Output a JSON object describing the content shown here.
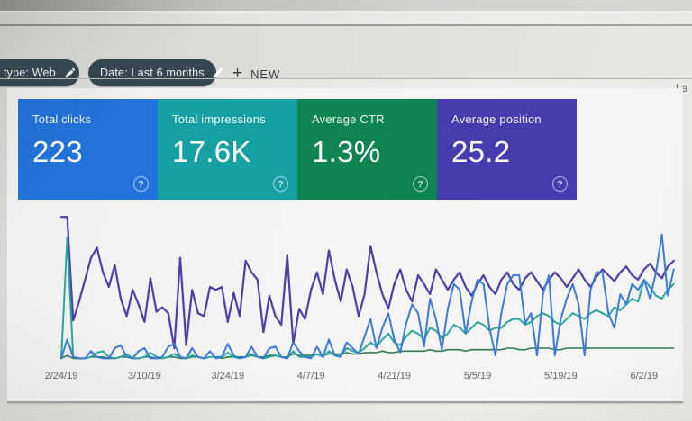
{
  "toolbar": {
    "search_type_chip": "type: Web",
    "date_chip": "Date: Last 6 months",
    "plus_glyph": "+",
    "new_button": "NEW",
    "last_updated_partial": "La"
  },
  "ui": {
    "help_glyph": "?"
  },
  "cards": [
    {
      "label": "Total clicks",
      "value": "223",
      "color": "#2272d9"
    },
    {
      "label": "Total impressions",
      "value": "17.6K",
      "color": "#17a0a1"
    },
    {
      "label": "Average CTR",
      "value": "1.3%",
      "color": "#0f8452"
    },
    {
      "label": "Average position",
      "value": "25.2",
      "color": "#463cae"
    }
  ],
  "chart_data": {
    "type": "line",
    "title": "",
    "xlabel": "",
    "ylabel": "",
    "grid": false,
    "y_axis_visible": false,
    "y_unit": "relative height 0-100 (no y-axis shown in chart)",
    "x_unit": "days (daily points, 2/24/19 onward)",
    "x_tick_labels": [
      "2/24/19",
      "3/10/19",
      "3/24/19",
      "4/7/19",
      "4/21/19",
      "5/5/19",
      "5/19/19",
      "6/2/19"
    ],
    "x_tick_days": [
      0,
      14,
      28,
      42,
      56,
      70,
      84,
      98
    ],
    "series": [
      {
        "key": "position",
        "name": "Average position",
        "color": "#4c3fa6",
        "width": 2.2,
        "values": [
          98,
          98,
          27,
          40,
          55,
          70,
          77,
          60,
          50,
          65,
          42,
          30,
          48,
          38,
          26,
          56,
          33,
          36,
          32,
          8,
          70,
          10,
          48,
          32,
          30,
          50,
          48,
          50,
          26,
          46,
          30,
          68,
          60,
          55,
          19,
          44,
          30,
          24,
          72,
          11,
          35,
          28,
          48,
          60,
          45,
          75,
          55,
          40,
          62,
          50,
          30,
          45,
          78,
          60,
          45,
          35,
          52,
          62,
          48,
          40,
          58,
          52,
          45,
          62,
          55,
          48,
          55,
          60,
          50,
          44,
          52,
          58,
          50,
          45,
          55,
          60,
          52,
          48,
          56,
          60,
          54,
          48,
          55,
          60,
          56,
          50,
          56,
          62,
          55,
          50,
          57,
          62,
          58,
          54,
          60,
          64,
          58,
          55,
          62,
          66,
          60,
          56,
          64,
          68
        ]
      },
      {
        "key": "ctr",
        "name": "Average CTR",
        "color": "#2f7d52",
        "width": 1.6,
        "values": [
          1,
          3,
          1,
          1,
          1,
          2,
          2,
          2,
          1,
          1,
          2,
          2,
          1,
          1,
          2,
          2,
          1,
          1,
          2,
          2,
          1,
          1,
          2,
          2,
          1,
          2,
          2,
          1,
          2,
          2,
          2,
          2,
          3,
          2,
          2,
          3,
          3,
          2,
          2,
          4,
          3,
          3,
          3,
          4,
          3,
          4,
          4,
          4,
          5,
          4,
          4,
          5,
          5,
          5,
          6,
          5,
          5,
          6,
          6,
          6,
          6,
          6,
          7,
          6,
          6,
          7,
          7,
          7,
          6,
          7,
          7,
          7,
          7,
          7,
          7,
          8,
          8,
          7,
          7,
          8,
          8,
          8,
          8,
          7,
          7,
          8,
          8,
          8,
          8,
          8,
          8,
          8,
          8,
          8,
          8,
          8,
          8,
          8,
          8,
          8,
          8,
          8,
          8,
          8
        ]
      },
      {
        "key": "impressions",
        "name": "Total impressions",
        "color": "#2aa59e",
        "width": 2,
        "values": [
          1,
          84,
          2,
          1,
          1,
          2,
          5,
          6,
          2,
          1,
          2,
          4,
          1,
          1,
          2,
          5,
          2,
          1,
          2,
          4,
          2,
          1,
          3,
          2,
          1,
          2,
          2,
          2,
          5,
          2,
          1,
          2,
          4,
          2,
          1,
          2,
          3,
          2,
          1,
          6,
          2,
          2,
          2,
          4,
          2,
          6,
          3,
          3,
          8,
          6,
          5,
          8,
          12,
          9,
          14,
          18,
          12,
          10,
          16,
          20,
          18,
          14,
          22,
          20,
          15,
          18,
          24,
          22,
          18,
          22,
          26,
          24,
          20,
          22,
          22,
          26,
          28,
          28,
          24,
          26,
          30,
          32,
          30,
          26,
          24,
          28,
          32,
          30,
          28,
          32,
          34,
          32,
          30,
          36,
          34,
          38,
          42,
          40,
          55,
          50,
          44,
          42,
          48,
          52
        ]
      },
      {
        "key": "clicks",
        "name": "Total clicks",
        "color": "#3a7bd5",
        "width": 2,
        "values": [
          1,
          14,
          2,
          1,
          1,
          6,
          2,
          1,
          1,
          8,
          10,
          2,
          1,
          6,
          8,
          1,
          1,
          2,
          9,
          11,
          2,
          1,
          8,
          2,
          1,
          6,
          1,
          2,
          11,
          3,
          1,
          2,
          9,
          2,
          1,
          8,
          9,
          2,
          1,
          12,
          6,
          2,
          1,
          9,
          2,
          14,
          3,
          2,
          12,
          8,
          4,
          16,
          28,
          8,
          22,
          32,
          14,
          5,
          25,
          38,
          32,
          9,
          42,
          28,
          7,
          35,
          52,
          48,
          18,
          40,
          55,
          52,
          22,
          3,
          32,
          52,
          58,
          58,
          25,
          32,
          3,
          45,
          58,
          3,
          28,
          42,
          52,
          38,
          3,
          48,
          60,
          60,
          32,
          22,
          45,
          38,
          52,
          48,
          55,
          42,
          60,
          86,
          44,
          62
        ]
      }
    ],
    "legend": "none shown; series colors match the four metric cards"
  }
}
